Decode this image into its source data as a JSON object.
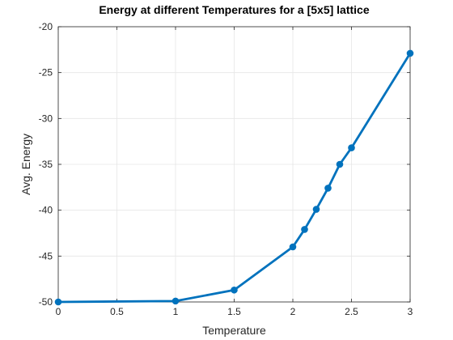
{
  "chart_data": {
    "type": "line",
    "title": "Energy at different Temperatures for a [5x5] lattice",
    "xlabel": "Temperature",
    "ylabel": "Avg. Energy",
    "xlim": [
      0,
      3
    ],
    "ylim": [
      -50,
      -20
    ],
    "xticks": [
      0,
      0.5,
      1,
      1.5,
      2,
      2.5,
      3
    ],
    "xtick_labels": [
      "0",
      "0.5",
      "1",
      "1.5",
      "2",
      "2.5",
      "3"
    ],
    "yticks": [
      -50,
      -45,
      -40,
      -35,
      -30,
      -25,
      -20
    ],
    "ytick_labels": [
      "-50",
      "-45",
      "-40",
      "-35",
      "-30",
      "-25",
      "-20"
    ],
    "grid": true,
    "series": [
      {
        "color": "#0072BD",
        "marker": "circle",
        "x": [
          0,
          1,
          1.5,
          2,
          2.1,
          2.2,
          2.3,
          2.4,
          2.5,
          3
        ],
        "y": [
          -50.0,
          -49.9,
          -48.7,
          -44.0,
          -42.1,
          -39.9,
          -37.6,
          -35.0,
          -33.2,
          -22.9
        ]
      }
    ]
  }
}
